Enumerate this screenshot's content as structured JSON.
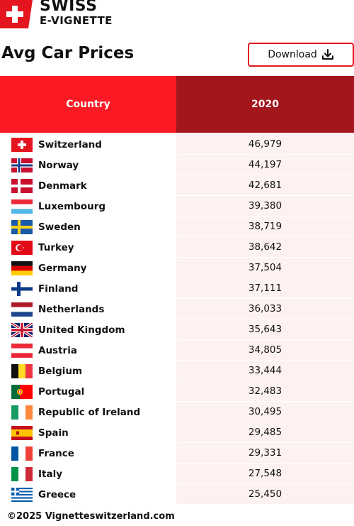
{
  "brand": {
    "line1": "SWISS",
    "line2": "E-VIGNETTE",
    "red": "#e4151f"
  },
  "title": "Avg Car Prices",
  "download_label": "Download",
  "footer": "©2025 Vignetteswitzerland.com",
  "colors": {
    "header_country": "#fb1a24",
    "header_year": "#a2161c",
    "value_cell": "#fdf1f1"
  },
  "chart_data": {
    "type": "table",
    "columns": [
      "Country",
      "2020"
    ],
    "rows": [
      {
        "country": "Switzerland",
        "value": "46,979",
        "flag": "switzerland"
      },
      {
        "country": "Norway",
        "value": "44,197",
        "flag": "norway"
      },
      {
        "country": "Denmark",
        "value": "42,681",
        "flag": "denmark"
      },
      {
        "country": "Luxembourg",
        "value": "39,380",
        "flag": "luxembourg"
      },
      {
        "country": "Sweden",
        "value": "38,719",
        "flag": "sweden"
      },
      {
        "country": "Turkey",
        "value": "38,642",
        "flag": "turkey"
      },
      {
        "country": "Germany",
        "value": "37,504",
        "flag": "germany"
      },
      {
        "country": "Finland",
        "value": "37,111",
        "flag": "finland"
      },
      {
        "country": "Netherlands",
        "value": "36,033",
        "flag": "netherlands"
      },
      {
        "country": "United Kingdom",
        "value": "35,643",
        "flag": "united-kingdom"
      },
      {
        "country": "Austria",
        "value": "34,805",
        "flag": "austria"
      },
      {
        "country": "Belgium",
        "value": "33,444",
        "flag": "belgium"
      },
      {
        "country": "Portugal",
        "value": "32,483",
        "flag": "portugal"
      },
      {
        "country": "Republic of Ireland",
        "value": "30,495",
        "flag": "ireland"
      },
      {
        "country": "Spain",
        "value": "29,485",
        "flag": "spain"
      },
      {
        "country": "France",
        "value": "29,331",
        "flag": "france"
      },
      {
        "country": "Italy",
        "value": "27,548",
        "flag": "italy"
      },
      {
        "country": "Greece",
        "value": "25,450",
        "flag": "greece"
      }
    ]
  }
}
